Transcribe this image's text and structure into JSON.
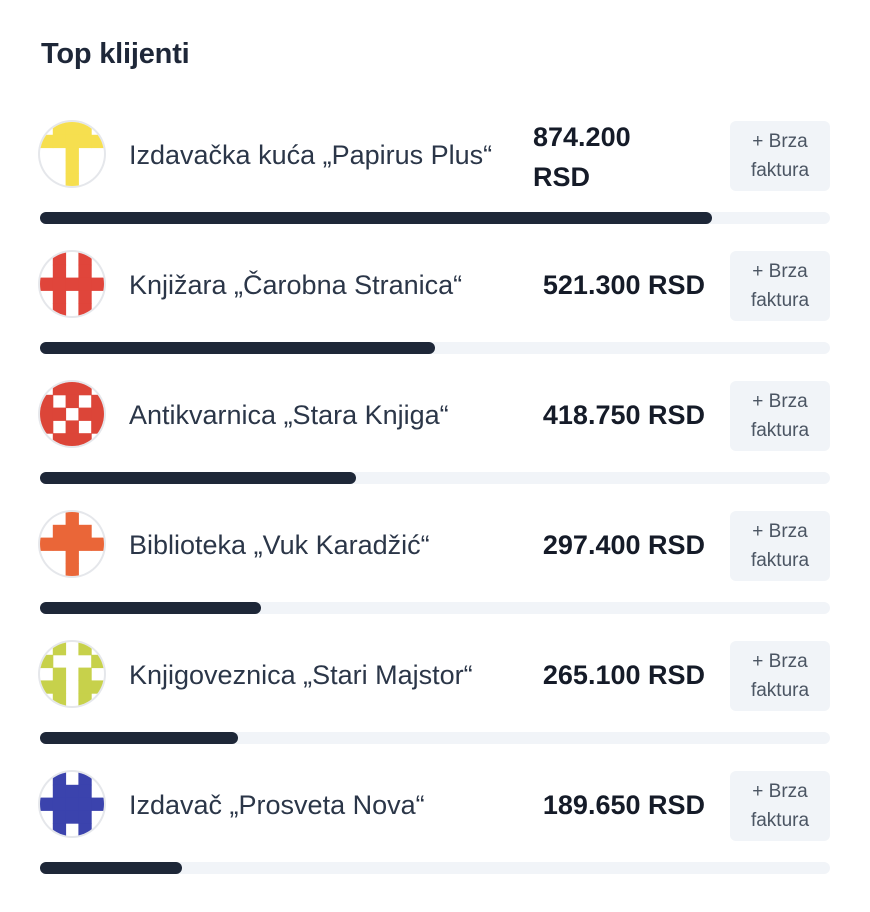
{
  "widget": {
    "title": "Top klijenti"
  },
  "clients": [
    {
      "name": "Izdavačka kuća „Papirus Plus“",
      "amount": "874.200 RSD",
      "share": 0.85,
      "button_label": "+ Brza faktura",
      "avatar_color": "#f6df4f",
      "avatar_icon": "identicon-yellow"
    },
    {
      "name": "Knjižara „Čarobna Stranica“",
      "amount": "521.300 RSD",
      "share": 0.5,
      "button_label": "+ Brza faktura",
      "avatar_color": "#e0453b",
      "avatar_icon": "identicon-red"
    },
    {
      "name": "Antikvarnica „Stara Knjiga“",
      "amount": "418.750 RSD",
      "share": 0.4,
      "button_label": "+ Brza faktura",
      "avatar_color": "#dc4538",
      "avatar_icon": "identicon-red-cross"
    },
    {
      "name": "Biblioteka „Vuk Karadžić“",
      "amount": "297.400 RSD",
      "share": 0.28,
      "button_label": "+ Brza faktura",
      "avatar_color": "#ea6638",
      "avatar_icon": "identicon-orange"
    },
    {
      "name": "Knjigoveznica „Stari Majstor“",
      "amount": "265.100 RSD",
      "share": 0.25,
      "button_label": "+ Brza faktura",
      "avatar_color": "#c7d14b",
      "avatar_icon": "identicon-lime"
    },
    {
      "name": "Izdavač „Prosveta Nova“",
      "amount": "189.650 RSD",
      "share": 0.18,
      "button_label": "+ Brza faktura",
      "avatar_color": "#3b43ad",
      "avatar_icon": "identicon-blue"
    }
  ]
}
